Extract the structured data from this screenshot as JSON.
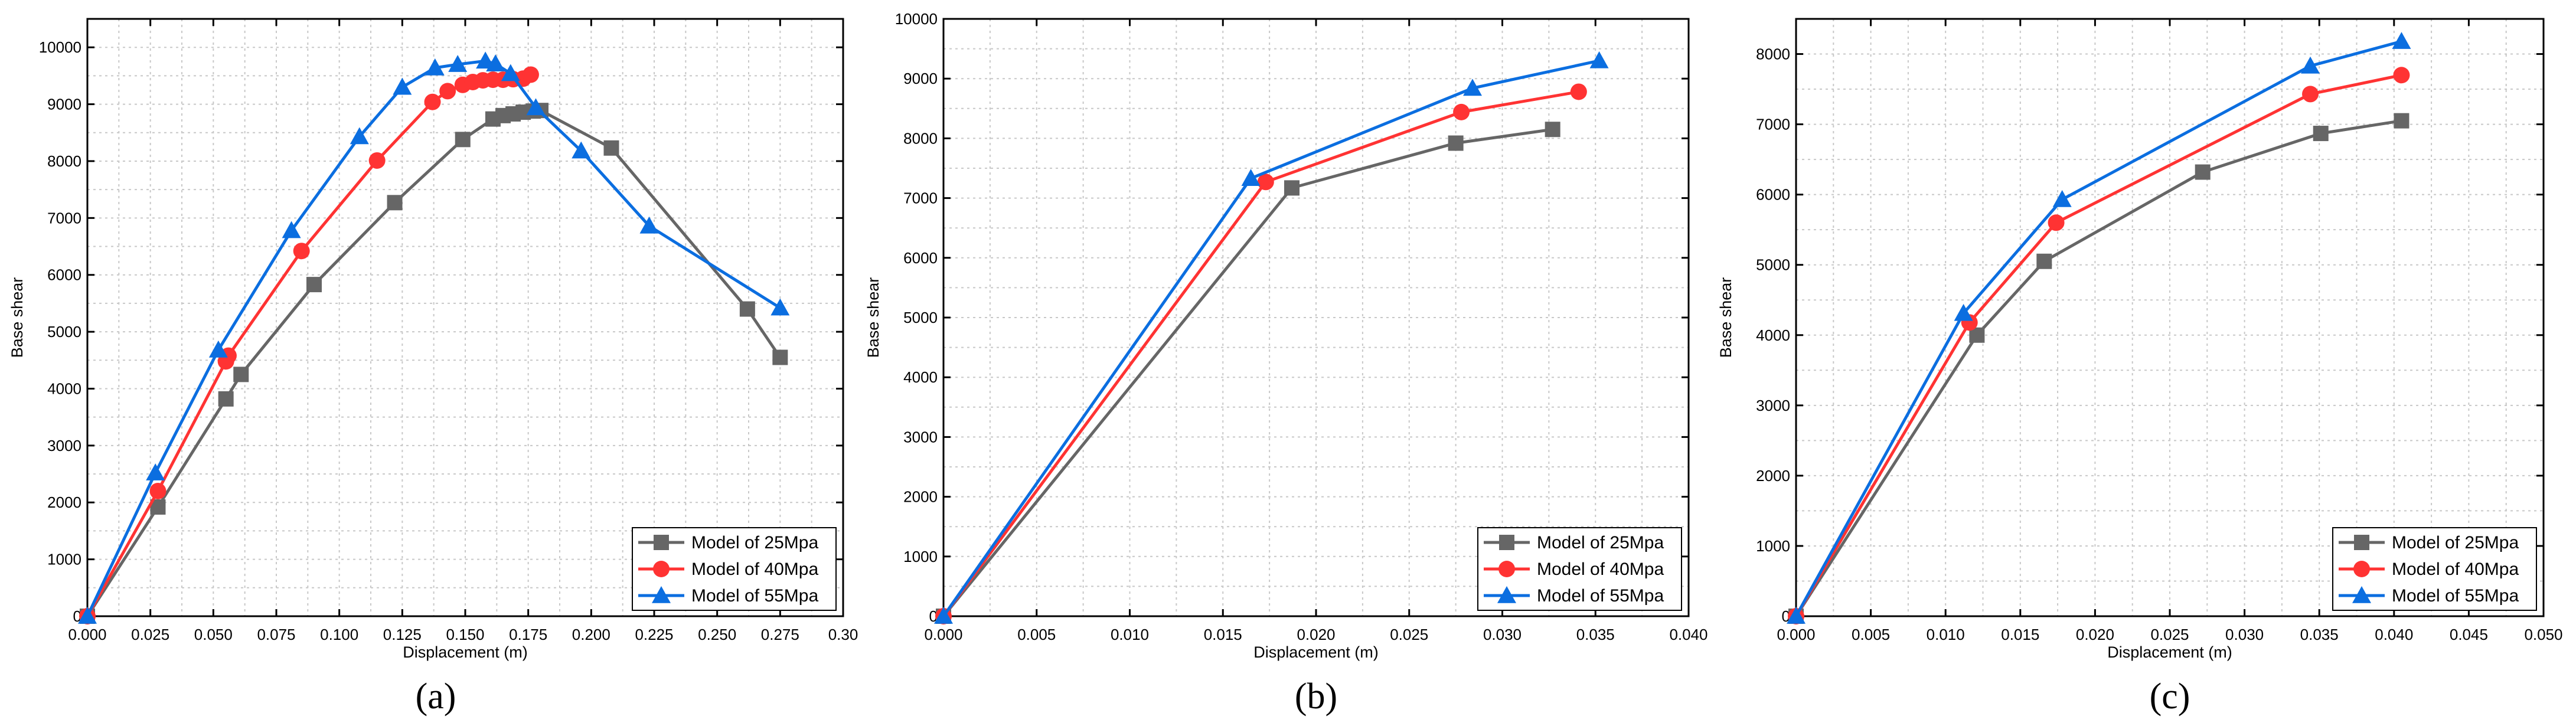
{
  "chart_data": [
    {
      "type": "line",
      "panel_label": "(a)",
      "xlabel": "Displacement (m)",
      "ylabel": "Base shear",
      "xlim": [
        0,
        0.3
      ],
      "ylim": [
        0,
        10500
      ],
      "xticks": [
        0,
        0.025,
        0.05,
        0.075,
        0.1,
        0.125,
        0.15,
        0.175,
        0.2,
        0.225,
        0.25,
        0.275,
        0.3
      ],
      "xtick_labels": [
        "0.000",
        "0.025",
        "0.050",
        "0.075",
        "0.100",
        "0.125",
        "0.150",
        "0.175",
        "0.200",
        "0.225",
        "0.250",
        "0.275",
        "0.30"
      ],
      "yticks": [
        0,
        1000,
        2000,
        3000,
        4000,
        5000,
        6000,
        7000,
        8000,
        9000,
        10000
      ],
      "ytick_labels": [
        "0",
        "1000",
        "2000",
        "3000",
        "4000",
        "5000",
        "6000",
        "7000",
        "8000",
        "9000",
        "10000"
      ],
      "grid": true,
      "legend_position": "bottom-right",
      "series": [
        {
          "name": "Model of 25Mpa",
          "color": "#666666",
          "marker": "square",
          "x": [
            0,
            0.028,
            0.055,
            0.061,
            0.09,
            0.122,
            0.149,
            0.161,
            0.165,
            0.169,
            0.173,
            0.177,
            0.18,
            0.208,
            0.262,
            0.275
          ],
          "y": [
            0,
            1920,
            3820,
            4250,
            5830,
            7270,
            8380,
            8740,
            8800,
            8830,
            8860,
            8880,
            8890,
            8230,
            5400,
            4550
          ]
        },
        {
          "name": "Model of 40Mpa",
          "color": "#ff3333",
          "marker": "circle",
          "x": [
            0,
            0.028,
            0.055,
            0.056,
            0.085,
            0.115,
            0.137,
            0.143,
            0.149,
            0.153,
            0.157,
            0.161,
            0.165,
            0.169,
            0.173,
            0.176
          ],
          "y": [
            0,
            2200,
            4480,
            4580,
            6420,
            8010,
            9040,
            9230,
            9340,
            9390,
            9420,
            9430,
            9430,
            9440,
            9450,
            9520
          ]
        },
        {
          "name": "Model of 55Mpa",
          "color": "#0b6ee0",
          "marker": "triangle",
          "x": [
            0,
            0.027,
            0.052,
            0.081,
            0.108,
            0.125,
            0.138,
            0.147,
            0.158,
            0.162,
            0.168,
            0.178,
            0.196,
            0.223,
            0.275
          ],
          "y": [
            0,
            2520,
            4680,
            6780,
            8430,
            9300,
            9640,
            9700,
            9760,
            9710,
            9540,
            8940,
            8180,
            6860,
            5420
          ]
        }
      ]
    },
    {
      "type": "line",
      "panel_label": "(b)",
      "xlabel": "Displacement (m)",
      "ylabel": "Base shear",
      "xlim": [
        0,
        0.04
      ],
      "ylim": [
        0,
        10000
      ],
      "xticks": [
        0,
        0.005,
        0.01,
        0.015,
        0.02,
        0.025,
        0.03,
        0.035,
        0.04
      ],
      "xtick_labels": [
        "0.000",
        "0.005",
        "0.010",
        "0.015",
        "0.020",
        "0.025",
        "0.030",
        "0.035",
        "0.040"
      ],
      "yticks": [
        0,
        1000,
        2000,
        3000,
        4000,
        5000,
        6000,
        7000,
        8000,
        9000,
        10000
      ],
      "ytick_labels": [
        "0",
        "1000",
        "2000",
        "3000",
        "4000",
        "5000",
        "6000",
        "7000",
        "8000",
        "9000",
        "10000"
      ],
      "grid": true,
      "legend_position": "bottom-right",
      "series": [
        {
          "name": "Model of 25Mpa",
          "color": "#666666",
          "marker": "square",
          "x": [
            0,
            0.0187,
            0.0275,
            0.0327
          ],
          "y": [
            0,
            7170,
            7920,
            8150
          ]
        },
        {
          "name": "Model of 40Mpa",
          "color": "#ff3333",
          "marker": "circle",
          "x": [
            0,
            0.0173,
            0.0278,
            0.0341
          ],
          "y": [
            0,
            7270,
            8440,
            8780
          ]
        },
        {
          "name": "Model of 55Mpa",
          "color": "#0b6ee0",
          "marker": "triangle",
          "x": [
            0,
            0.0165,
            0.0284,
            0.0352
          ],
          "y": [
            0,
            7330,
            8840,
            9300
          ]
        }
      ]
    },
    {
      "type": "line",
      "panel_label": "(c)",
      "xlabel": "Displacement (m)",
      "ylabel": "Base shear",
      "xlim": [
        0,
        0.05
      ],
      "ylim": [
        0,
        8500
      ],
      "xticks": [
        0,
        0.005,
        0.01,
        0.015,
        0.02,
        0.025,
        0.03,
        0.035,
        0.04,
        0.045,
        0.05
      ],
      "xtick_labels": [
        "0.000",
        "0.005",
        "0.010",
        "0.015",
        "0.020",
        "0.025",
        "0.030",
        "0.035",
        "0.040",
        "0.045",
        "0.050"
      ],
      "yticks": [
        0,
        1000,
        2000,
        3000,
        4000,
        5000,
        6000,
        7000,
        8000
      ],
      "ytick_labels": [
        "0",
        "1000",
        "2000",
        "3000",
        "4000",
        "5000",
        "6000",
        "7000",
        "8000"
      ],
      "grid": true,
      "legend_position": "bottom-right",
      "series": [
        {
          "name": "Model of 25Mpa",
          "color": "#666666",
          "marker": "square",
          "x": [
            0,
            0.0121,
            0.0166,
            0.0272,
            0.0351,
            0.0405
          ],
          "y": [
            0,
            4000,
            5050,
            6320,
            6870,
            7050
          ]
        },
        {
          "name": "Model of 40Mpa",
          "color": "#ff3333",
          "marker": "circle",
          "x": [
            0,
            0.0116,
            0.0174,
            0.0344,
            0.0405
          ],
          "y": [
            0,
            4180,
            5600,
            7430,
            7700
          ]
        },
        {
          "name": "Model of 55Mpa",
          "color": "#0b6ee0",
          "marker": "triangle",
          "x": [
            0,
            0.0112,
            0.0178,
            0.0344,
            0.0405
          ],
          "y": [
            0,
            4310,
            5930,
            7830,
            8180
          ]
        }
      ]
    }
  ]
}
